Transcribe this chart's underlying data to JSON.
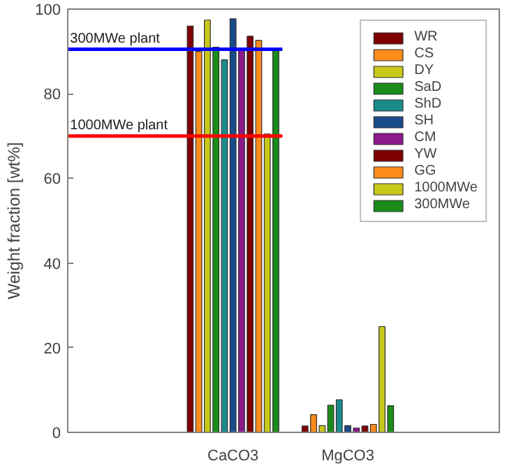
{
  "chart_data": {
    "type": "bar",
    "ylabel": "Weight fraction [wt%]",
    "categories": [
      "CaCO3",
      "MgCO3"
    ],
    "series": [
      {
        "name": "WR",
        "color": "#800000",
        "values": [
          96,
          1.5
        ]
      },
      {
        "name": "CS",
        "color": "#ff8c1a",
        "values": [
          90,
          4.2
        ]
      },
      {
        "name": "DY",
        "color": "#c8c81a",
        "values": [
          97.4,
          1.6
        ]
      },
      {
        "name": "SaD",
        "color": "#1a8c1a",
        "values": [
          91,
          6.4
        ]
      },
      {
        "name": "ShD",
        "color": "#1a8c8c",
        "values": [
          88,
          7.7
        ]
      },
      {
        "name": "SH",
        "color": "#1a4c8c",
        "values": [
          97.7,
          1.6
        ]
      },
      {
        "name": "CM",
        "color": "#8c1a8c",
        "values": [
          90.5,
          1
        ]
      },
      {
        "name": "YW",
        "color": "#800000",
        "values": [
          93.6,
          1.5
        ]
      },
      {
        "name": "GG",
        "color": "#ff8c1a",
        "values": [
          92.6,
          1.9
        ]
      },
      {
        "name": "1000MWe",
        "color": "#c8c81a",
        "values": [
          70.5,
          25
        ]
      },
      {
        "name": "300MWe",
        "color": "#1a8c1a",
        "values": [
          90.4,
          6.3
        ]
      }
    ],
    "ylim": [
      0,
      100
    ],
    "yticks": [
      0,
      20,
      40,
      60,
      80,
      100
    ],
    "grid": false,
    "legend": "top right",
    "ref_lines": [
      {
        "axis": "y",
        "value": 90.5,
        "label": "300MWe plant",
        "color": "#0000ff"
      },
      {
        "axis": "y",
        "value": 70,
        "label": "1000MWe plant",
        "color": "#ff0000"
      }
    ]
  }
}
